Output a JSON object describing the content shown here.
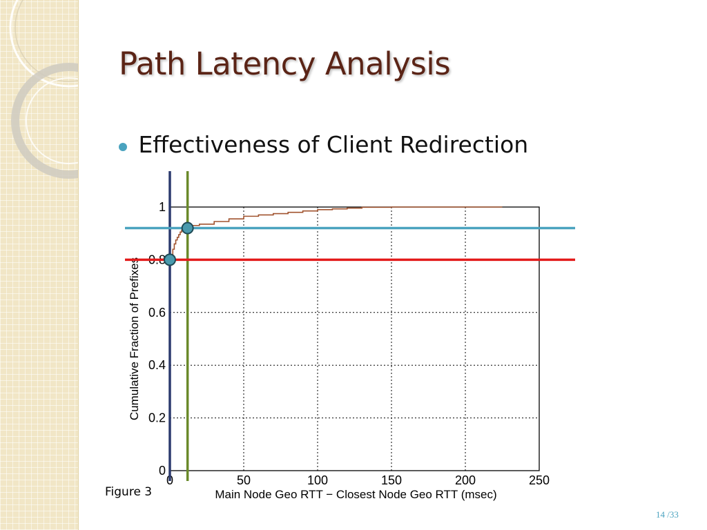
{
  "slide": {
    "title": "Path Latency Analysis",
    "bullet": "Effectiveness of Client Redirection",
    "figure_caption": "Figure 3",
    "page_number": "14 /33"
  },
  "colors": {
    "title": "#5b2416",
    "bullet": "#4aa3bf",
    "curve": "#a0522d",
    "vline_blue": "#2b3a6e",
    "vline_green": "#6a8a2a",
    "hline_cyan": "#4aa3bf",
    "hline_red": "#e31b1b",
    "marker_fill": "#4a9aad"
  },
  "chart_data": {
    "type": "line",
    "xlabel": "Main Node Geo RTT − Closest Node Geo RTT (msec)",
    "ylabel": "Cumulative Fraction of Prefixes",
    "xlim": [
      0,
      250
    ],
    "ylim": [
      0,
      1
    ],
    "x_ticks": [
      "0",
      "50",
      "100",
      "150",
      "200",
      "250"
    ],
    "y_ticks": [
      "0",
      "0.2",
      "0.4",
      "0.6",
      "0.8",
      "1"
    ],
    "grid": true,
    "series": [
      {
        "x": [
          0,
          1,
          2,
          3,
          4,
          5,
          6,
          7,
          8,
          10,
          12,
          15,
          20,
          30,
          40,
          50,
          60,
          70,
          80,
          90,
          100,
          110,
          120,
          130,
          150,
          180,
          200,
          225
        ],
        "y": [
          0.8,
          0.82,
          0.84,
          0.86,
          0.875,
          0.885,
          0.895,
          0.905,
          0.912,
          0.92,
          0.925,
          0.93,
          0.935,
          0.945,
          0.955,
          0.965,
          0.97,
          0.975,
          0.98,
          0.985,
          0.99,
          0.993,
          0.996,
          0.999,
          1.0,
          1.0,
          1.0,
          1.0
        ]
      }
    ],
    "annotations": {
      "vertical_lines_x": [
        0,
        12
      ],
      "horizontal_lines_y": [
        0.8,
        0.92
      ],
      "markers": [
        {
          "x": 0,
          "y": 0.8
        },
        {
          "x": 12,
          "y": 0.92
        }
      ]
    }
  }
}
